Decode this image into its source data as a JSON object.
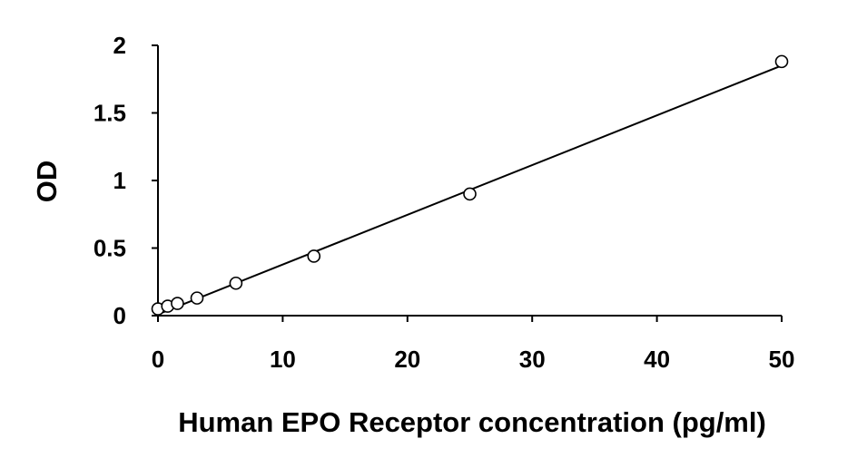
{
  "chart_data": {
    "type": "scatter",
    "title": "",
    "xlabel": "Human EPO Receptor concentration (pg/ml)",
    "ylabel": "OD",
    "xlim": [
      0,
      50
    ],
    "ylim": [
      0,
      2
    ],
    "x_ticks": [
      0,
      10,
      20,
      30,
      40,
      50
    ],
    "y_ticks": [
      0,
      0.5,
      1,
      1.5,
      2
    ],
    "x_tick_labels": [
      "0",
      "10",
      "20",
      "30",
      "40",
      "50"
    ],
    "y_tick_labels": [
      "0",
      "0.5",
      "1",
      "1.5",
      "2"
    ],
    "grid": false,
    "legend": "none",
    "series": [
      {
        "marker": "open-circle",
        "x": [
          0,
          0.78,
          1.56,
          3.13,
          6.25,
          12.5,
          25,
          50
        ],
        "y": [
          0.05,
          0.07,
          0.09,
          0.13,
          0.24,
          0.44,
          0.9,
          1.88
        ]
      }
    ],
    "trendline": {
      "type": "linear",
      "x": [
        0,
        50
      ],
      "y": [
        0.01,
        1.85
      ]
    },
    "colors": {
      "axis": "#000000",
      "marker_stroke": "#000000",
      "marker_fill": "#ffffff",
      "line": "#000000"
    }
  }
}
